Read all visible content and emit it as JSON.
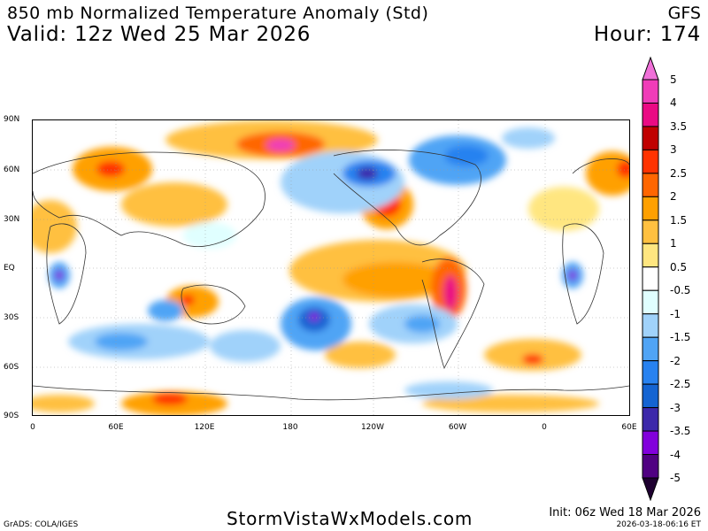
{
  "header": {
    "title": "850 mb Normalized Temperature Anomaly (Std)",
    "valid": "Valid: 12z Wed 25 Mar 2026",
    "model": "GFS",
    "hour": "Hour: 174"
  },
  "map": {
    "lat_labels": [
      "90N",
      "60N",
      "30N",
      "EQ",
      "30S",
      "60S",
      "90S"
    ],
    "lon_labels": [
      "0",
      "60E",
      "120E",
      "180",
      "120W",
      "60W",
      "0",
      "60E"
    ]
  },
  "colorbar": {
    "labels": [
      "5",
      "4",
      "3.5",
      "3",
      "2.5",
      "2",
      "1.5",
      "1",
      "0.5",
      "-0.5",
      "-1",
      "-1.5",
      "-2",
      "-2.5",
      "-3",
      "-3.5",
      "-4",
      "-5"
    ],
    "top_arrow_color": "#f070d8",
    "bottom_arrow_color": "#1e0030",
    "colors": [
      "#f03cb8",
      "#ea0a84",
      "#c00000",
      "#ff3300",
      "#ff6600",
      "#ffa000",
      "#ffc040",
      "#ffe680",
      "#ffffff",
      "#e0ffff",
      "#a0d2fa",
      "#50a4f5",
      "#2882f0",
      "#1464d2",
      "#3c28aa",
      "#8200dc",
      "#500082"
    ]
  },
  "footer": {
    "grads": "GrADS: COLA/IGES",
    "brand": "StormVistaWxModels.com",
    "init": "Init: 06z Wed 18 Mar 2026",
    "timestamp": "2026-03-18-06:16 ET"
  }
}
